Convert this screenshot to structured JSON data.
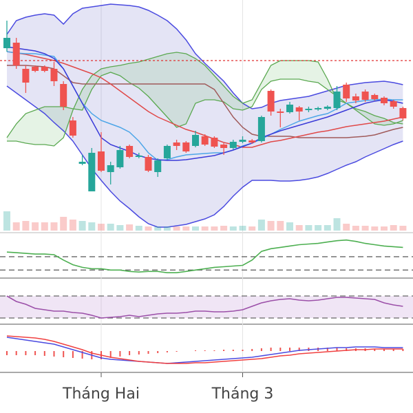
{
  "chart_data": {
    "type": "candlestick",
    "categories": [
      null,
      null,
      null,
      null,
      null,
      null,
      null,
      null,
      null,
      null,
      "Tháng Hai",
      null,
      null,
      null,
      null,
      null,
      null,
      null,
      null,
      null,
      null,
      null,
      null,
      null,
      null,
      "Tháng 3",
      null,
      null,
      null,
      null,
      null,
      null,
      null,
      null,
      null,
      null,
      null,
      null,
      null,
      null,
      null,
      null,
      null
    ],
    "open": [
      270,
      278,
      240,
      243,
      243,
      240,
      218,
      165,
      102,
      62,
      120,
      90,
      97,
      128,
      112,
      112,
      90,
      110,
      133,
      133,
      128,
      142,
      140,
      130,
      125,
      134,
      136,
      135,
      208,
      178,
      177,
      184,
      180,
      181,
      182,
      183,
      217,
      200,
      207,
      202,
      198,
      193,
      183
    ],
    "high": [
      310,
      285,
      245,
      245,
      245,
      250,
      222,
      170,
      115,
      125,
      148,
      105,
      128,
      130,
      118,
      115,
      110,
      130,
      137,
      135,
      150,
      145,
      142,
      132,
      137,
      142,
      138,
      172,
      210,
      182,
      192,
      186,
      185,
      185,
      187,
      215,
      220,
      204,
      210,
      204,
      200,
      195,
      185
    ],
    "low": [
      265,
      240,
      205,
      235,
      235,
      215,
      180,
      140,
      100,
      62,
      90,
      72,
      95,
      110,
      110,
      90,
      83,
      108,
      122,
      118,
      126,
      128,
      125,
      115,
      123,
      132,
      131,
      133,
      172,
      155,
      175,
      165,
      177,
      179,
      180,
      180,
      192,
      190,
      192,
      194,
      187,
      182,
      165
    ],
    "close": [
      285,
      245,
      220,
      237,
      237,
      222,
      185,
      143,
      105,
      118,
      92,
      100,
      122,
      112,
      114,
      92,
      107,
      128,
      128,
      120,
      144,
      130,
      127,
      125,
      134,
      137,
      133,
      170,
      178,
      176,
      188,
      178,
      182,
      183,
      185,
      207,
      197,
      194,
      195,
      196,
      190,
      185,
      168
    ],
    "up_color": "#26a69a",
    "down_color": "#ef5350",
    "ylim": [
      5,
      340
    ],
    "grid": true,
    "volume": {
      "values": [
        28,
        12,
        14,
        12,
        12,
        12,
        20,
        16,
        14,
        12,
        10,
        10,
        8,
        9,
        7,
        6,
        6,
        6,
        6,
        6,
        6,
        6,
        6,
        7,
        6,
        7,
        6,
        16,
        14,
        14,
        12,
        8,
        8,
        8,
        8,
        18,
        10,
        7,
        7,
        6,
        6,
        8,
        7
      ],
      "ylim": [
        0,
        335
      ]
    },
    "band": {
      "color": "#4a4ae0",
      "fill": "rgba(90,90,190,0.16)",
      "upper": [
        290,
        310,
        315,
        318,
        320,
        318,
        305,
        320,
        328,
        330,
        332,
        334,
        333,
        332,
        330,
        325,
        318,
        310,
        298,
        282,
        262,
        248,
        235,
        222,
        205,
        190,
        182,
        184,
        190,
        194,
        196,
        198,
        200,
        204,
        208,
        212,
        216,
        218,
        220,
        221,
        222,
        220,
        217
      ],
      "lower": [
        215,
        205,
        195,
        185,
        175,
        162,
        150,
        135,
        115,
        95,
        78,
        62,
        48,
        37,
        25,
        15,
        10,
        10,
        12,
        14,
        18,
        22,
        28,
        40,
        55,
        68,
        78,
        78,
        78,
        77,
        77,
        78,
        80,
        83,
        88,
        94,
        100,
        105,
        112,
        118,
        124,
        130,
        135
      ]
    },
    "cloud": {
      "color": "#5aa850",
      "fill": "rgba(110,190,110,0.18)",
      "a": [
        135,
        135,
        132,
        130,
        130,
        128,
        140,
        180,
        210,
        230,
        240,
        243,
        245,
        248,
        250,
        254,
        258,
        262,
        264,
        262,
        255,
        245,
        230,
        215,
        200,
        190,
        195,
        220,
        245,
        252,
        252,
        252,
        252,
        250,
        225,
        195,
        190,
        182,
        178,
        172,
        168,
        162,
        160
      ],
      "b": [
        140,
        160,
        175,
        180,
        185,
        185,
        185,
        182,
        180,
        210,
        230,
        235,
        230,
        220,
        212,
        200,
        185,
        170,
        155,
        160,
        190,
        195,
        195,
        192,
        182,
        180,
        185,
        210,
        222,
        225,
        225,
        225,
        222,
        220,
        210,
        200,
        190,
        180,
        170,
        160,
        158,
        160,
        165
      ]
    },
    "overlays": [
      {
        "color": "#a05a5a",
        "values": [
          245,
          245,
          245,
          244,
          243,
          240,
          230,
          220,
          218,
          218,
          218,
          218,
          218,
          218,
          218,
          218,
          218,
          218,
          218,
          218,
          218,
          218,
          210,
          190,
          170,
          155,
          145,
          142,
          142,
          142,
          142,
          140,
          140,
          140,
          140,
          140,
          140,
          141,
          142,
          144,
          148,
          152,
          155
        ]
      },
      {
        "color": "#e04848",
        "values": [
          265,
          263,
          261,
          258,
          255,
          252,
          248,
          243,
          238,
          233,
          227,
          218,
          208,
          198,
          188,
          178,
          170,
          164,
          158,
          152,
          148,
          143,
          138,
          133,
          130,
          126,
          126,
          130,
          134,
          136,
          139,
          142,
          145,
          148,
          150,
          153,
          156,
          158,
          160,
          162,
          164,
          167,
          170
        ]
      },
      {
        "color": "#4da6e8",
        "values": [
          265,
          263,
          262,
          262,
          260,
          258,
          240,
          215,
          190,
          175,
          165,
          160,
          155,
          148,
          135,
          118,
          107,
          108,
          112,
          115,
          116,
          117,
          118,
          118,
          122,
          128,
          132,
          138,
          145,
          152,
          158,
          164,
          168,
          172,
          175,
          182,
          190,
          192,
          194,
          195,
          196,
          195,
          195
        ]
      },
      {
        "color": "#3a3ad8",
        "values": [
          272,
          270,
          268,
          266,
          262,
          255,
          240,
          215,
          190,
          165,
          140,
          130,
          125,
          120,
          114,
          110,
          108,
          107,
          107,
          108,
          110,
          112,
          114,
          118,
          122,
          127,
          132,
          140,
          145,
          150,
          154,
          158,
          162,
          166,
          170,
          175,
          180,
          185,
          190,
          193,
          195,
          193,
          190
        ]
      }
    ],
    "reference_line": {
      "value": 252,
      "color": "#e03030"
    },
    "panels": [
      {
        "ylim": [
          0,
          64
        ],
        "levels": [
          30,
          10
        ],
        "series": [
          {
            "color": "#4caf50",
            "values": [
              37,
              36,
              35,
              34,
              34,
              33,
              25,
              18,
              14,
              12,
              12,
              10,
              10,
              8,
              7,
              8,
              8,
              6,
              6,
              8,
              10,
              12,
              14,
              15,
              16,
              17,
              25,
              38,
              42,
              44,
              46,
              48,
              49,
              50,
              52,
              54,
              55,
              53,
              50,
              48,
              46,
              45,
              44
            ]
          }
        ]
      },
      {
        "ylim": [
          0,
          65
        ],
        "levels": [
          40,
          8
        ],
        "band_fill": "rgba(170,110,200,0.18)",
        "series": [
          {
            "color": "#9b4fa8",
            "values": [
              40,
              32,
              28,
              22,
              20,
              18,
              18,
              16,
              15,
              12,
              8,
              9,
              10,
              12,
              10,
              12,
              14,
              15,
              15,
              16,
              18,
              18,
              17,
              17,
              18,
              20,
              25,
              30,
              33,
              35,
              36,
              34,
              33,
              34,
              36,
              38,
              38,
              37,
              36,
              35,
              30,
              27,
              25
            ]
          }
        ]
      },
      {
        "ylim": [
          -30,
          38
        ],
        "histogram": {
          "color": "#ef5350",
          "values": [
            -6,
            -6,
            -6,
            -6,
            -7,
            -8,
            -9,
            -10,
            -11,
            -12,
            -12,
            -10,
            -8,
            -6,
            -5,
            -4,
            -3,
            -2,
            -1,
            0,
            1,
            1,
            1,
            2,
            2,
            2,
            3,
            4,
            5,
            5,
            5,
            5,
            5,
            5,
            5,
            5,
            4,
            4,
            4,
            3,
            3,
            3,
            3
          ]
        },
        "series": [
          {
            "color": "#4a4ae0",
            "values": [
              20,
              18,
              16,
              14,
              12,
              10,
              6,
              2,
              -2,
              -6,
              -10,
              -12,
              -13,
              -14,
              -15,
              -16,
              -17,
              -18,
              -17,
              -16,
              -15,
              -14,
              -13,
              -12,
              -11,
              -10,
              -9,
              -7,
              -5,
              -3,
              -1,
              1,
              2,
              3,
              4,
              5,
              5,
              6,
              6,
              6,
              5,
              5,
              5
            ]
          },
          {
            "color": "#f04040",
            "values": [
              22,
              21,
              20,
              19,
              17,
              14,
              10,
              6,
              2,
              -3,
              -6,
              -9,
              -11,
              -13,
              -15,
              -16,
              -17,
              -18,
              -18,
              -18,
              -17,
              -17,
              -16,
              -15,
              -14,
              -13,
              -12,
              -11,
              -9,
              -7,
              -6,
              -4,
              -3,
              -2,
              -1,
              0,
              1,
              2,
              2,
              3,
              3,
              3,
              3
            ]
          }
        ]
      }
    ]
  }
}
